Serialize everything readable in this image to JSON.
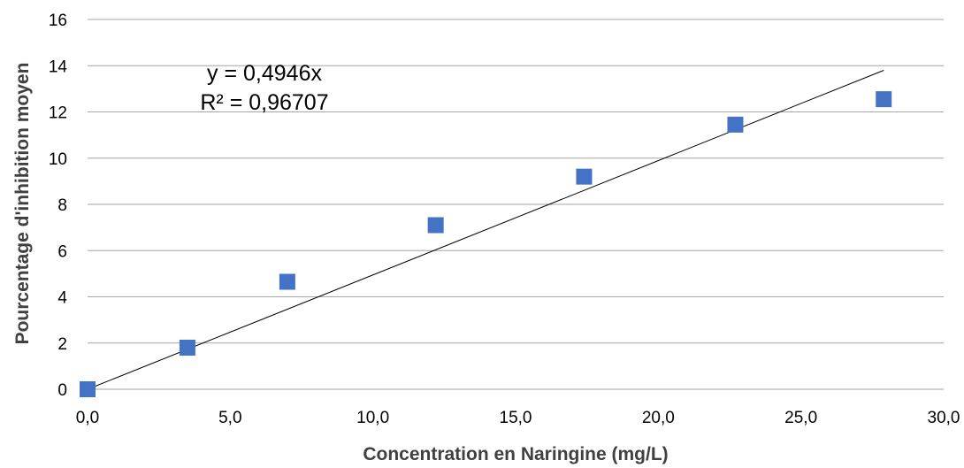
{
  "chart_data": {
    "type": "scatter",
    "title": "",
    "xlabel": "Concentration en Naringine (mg/L)",
    "ylabel": "Pourcentage d'inhibition moyen",
    "xlim": [
      0,
      30
    ],
    "ylim": [
      0,
      16
    ],
    "xticks": [
      "0,0",
      "5,0",
      "10,0",
      "15,0",
      "20,0",
      "25,0",
      "30,0"
    ],
    "yticks": [
      "0",
      "2",
      "4",
      "6",
      "8",
      "10",
      "12",
      "14",
      "16"
    ],
    "grid": "horizontal",
    "legend": "none",
    "series": [
      {
        "marker": "square",
        "color": "#4472C4",
        "x": [
          0.0,
          3.5,
          7.0,
          12.2,
          17.4,
          22.7,
          27.9
        ],
        "y": [
          0.0,
          1.8,
          4.65,
          7.1,
          9.2,
          11.45,
          12.55
        ]
      }
    ],
    "trendline": {
      "type": "linear",
      "slope": 0.4946,
      "x_range": [
        0,
        27.9
      ],
      "color": "#000000",
      "equation": "y = 0,4946x",
      "r_squared": "R² = 0,96707"
    }
  }
}
